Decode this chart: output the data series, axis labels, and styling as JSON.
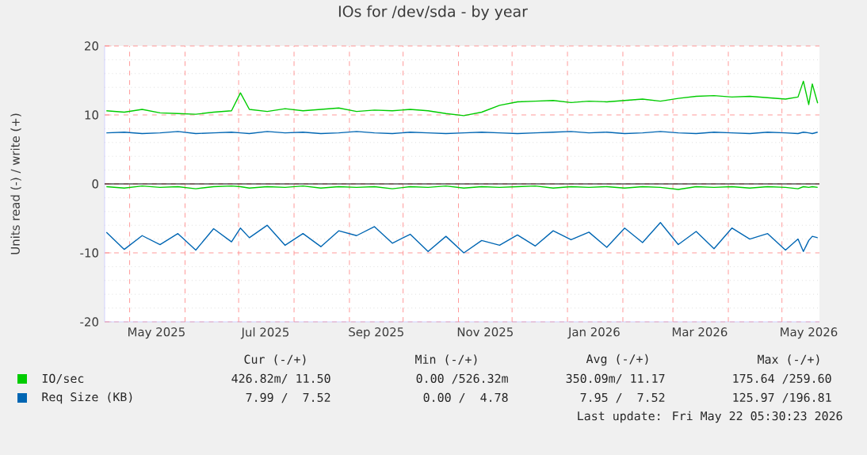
{
  "chart_data": {
    "type": "line",
    "title": "IOs for /dev/sda - by year",
    "ylabel": "Units read (-) / write (+)",
    "x": [
      "2025-04-18",
      "2025-04-28",
      "2025-05-08",
      "2025-05-18",
      "2025-05-28",
      "2025-06-07",
      "2025-06-17",
      "2025-06-27",
      "2025-07-02",
      "2025-07-07",
      "2025-07-17",
      "2025-07-27",
      "2025-08-06",
      "2025-08-16",
      "2025-08-26",
      "2025-09-05",
      "2025-09-15",
      "2025-09-25",
      "2025-10-05",
      "2025-10-15",
      "2025-10-25",
      "2025-11-04",
      "2025-11-14",
      "2025-11-24",
      "2025-12-04",
      "2025-12-14",
      "2025-12-24",
      "2026-01-03",
      "2026-01-13",
      "2026-01-23",
      "2026-02-02",
      "2026-02-12",
      "2026-02-22",
      "2026-03-04",
      "2026-03-14",
      "2026-03-24",
      "2026-04-03",
      "2026-04-13",
      "2026-04-23",
      "2026-05-03",
      "2026-05-10",
      "2026-05-13",
      "2026-05-16",
      "2026-05-18",
      "2026-05-21"
    ],
    "series": [
      {
        "name": "IO/sec",
        "color": "#00cc00",
        "values": [
          10.6,
          10.4,
          10.8,
          10.3,
          10.2,
          10.1,
          10.4,
          10.6,
          13.2,
          10.8,
          10.5,
          10.9,
          10.6,
          10.8,
          11.0,
          10.5,
          10.7,
          10.6,
          10.8,
          10.6,
          10.2,
          9.9,
          10.4,
          11.4,
          11.9,
          12.0,
          12.1,
          11.8,
          12.0,
          11.9,
          12.1,
          12.3,
          12.0,
          12.4,
          12.7,
          12.8,
          12.6,
          12.7,
          12.5,
          12.3,
          12.6,
          14.9,
          11.5,
          14.5,
          11.7
        ]
      },
      {
        "color": "#00cc00",
        "values": [
          -0.4,
          -0.6,
          -0.3,
          -0.5,
          -0.4,
          -0.7,
          -0.4,
          -0.3,
          -0.4,
          -0.6,
          -0.4,
          -0.5,
          -0.3,
          -0.6,
          -0.4,
          -0.5,
          -0.4,
          -0.7,
          -0.4,
          -0.5,
          -0.3,
          -0.6,
          -0.4,
          -0.5,
          -0.4,
          -0.3,
          -0.6,
          -0.4,
          -0.5,
          -0.4,
          -0.6,
          -0.4,
          -0.5,
          -0.8,
          -0.4,
          -0.5,
          -0.4,
          -0.6,
          -0.4,
          -0.5,
          -0.7,
          -0.4,
          -0.5,
          -0.4,
          -0.5
        ]
      },
      {
        "name": "Req Size (KB)",
        "color": "#0066b3",
        "values": [
          7.4,
          7.5,
          7.3,
          7.4,
          7.6,
          7.3,
          7.4,
          7.5,
          7.4,
          7.3,
          7.6,
          7.4,
          7.5,
          7.3,
          7.4,
          7.6,
          7.4,
          7.3,
          7.5,
          7.4,
          7.3,
          7.4,
          7.5,
          7.4,
          7.3,
          7.4,
          7.5,
          7.6,
          7.4,
          7.5,
          7.3,
          7.4,
          7.6,
          7.4,
          7.3,
          7.5,
          7.4,
          7.3,
          7.5,
          7.4,
          7.3,
          7.5,
          7.4,
          7.3,
          7.5
        ]
      },
      {
        "color": "#0066b3",
        "values": [
          -7.0,
          -9.5,
          -7.5,
          -8.8,
          -7.2,
          -9.6,
          -6.5,
          -8.4,
          -6.4,
          -7.8,
          -6.0,
          -8.9,
          -7.2,
          -9.1,
          -6.8,
          -7.5,
          -6.2,
          -8.6,
          -7.3,
          -9.8,
          -7.6,
          -10.0,
          -8.2,
          -8.9,
          -7.4,
          -9.0,
          -6.8,
          -8.1,
          -7.0,
          -9.2,
          -6.4,
          -8.5,
          -5.6,
          -8.8,
          -6.9,
          -9.4,
          -6.4,
          -8.0,
          -7.2,
          -9.6,
          -8.0,
          -9.8,
          -8.2,
          -7.6,
          -7.8
        ]
      }
    ],
    "xlim": [
      "2025-04-17",
      "2026-05-22"
    ],
    "xticks": [
      {
        "value": "2025-05-01",
        "label": null
      },
      {
        "value": "2025-06-01",
        "label": null
      },
      {
        "value": "2025-07-01",
        "label": null
      },
      {
        "value": "2025-08-01",
        "label": null
      },
      {
        "value": "2025-09-01",
        "label": null
      },
      {
        "value": "2025-10-01",
        "label": null
      },
      {
        "value": "2025-11-01",
        "label": null
      },
      {
        "value": "2025-12-01",
        "label": null
      },
      {
        "value": "2026-01-01",
        "label": null
      },
      {
        "value": "2026-02-01",
        "label": null
      },
      {
        "value": "2026-03-01",
        "label": null
      },
      {
        "value": "2026-04-01",
        "label": null
      },
      {
        "value": "2026-05-01",
        "label": null
      },
      {
        "value": "2025-05-16",
        "label": "May 2025"
      },
      {
        "value": "2025-07-16",
        "label": "Jul 2025"
      },
      {
        "value": "2025-09-16",
        "label": "Sep 2025"
      },
      {
        "value": "2025-11-16",
        "label": "Nov 2025"
      },
      {
        "value": "2026-01-16",
        "label": "Jan 2026"
      },
      {
        "value": "2026-03-16",
        "label": "Mar 2026"
      },
      {
        "value": "2026-05-16",
        "label": "May 2026"
      }
    ],
    "ylim": [
      -20,
      20
    ],
    "yticks": [
      -20,
      -10,
      0,
      10,
      20
    ],
    "ref_lines": [
      {
        "axis": "y",
        "value": 0,
        "color": "#000000"
      }
    ],
    "grid": true,
    "legend": "bottom left",
    "annotations": [
      "Cur (-/+)",
      "Min (-/+)",
      "Avg (-/+)",
      "Max (-/+)",
      "426.82m/ 11.50",
      "0.00 /526.32m",
      "350.09m/ 11.17",
      "175.64 /259.60",
      "7.99 /  7.52",
      "0.00 /  4.78",
      "7.95 /  7.52",
      "125.97 /196.81",
      "Last update: Fri May 22 05:30:23 2026"
    ]
  }
}
